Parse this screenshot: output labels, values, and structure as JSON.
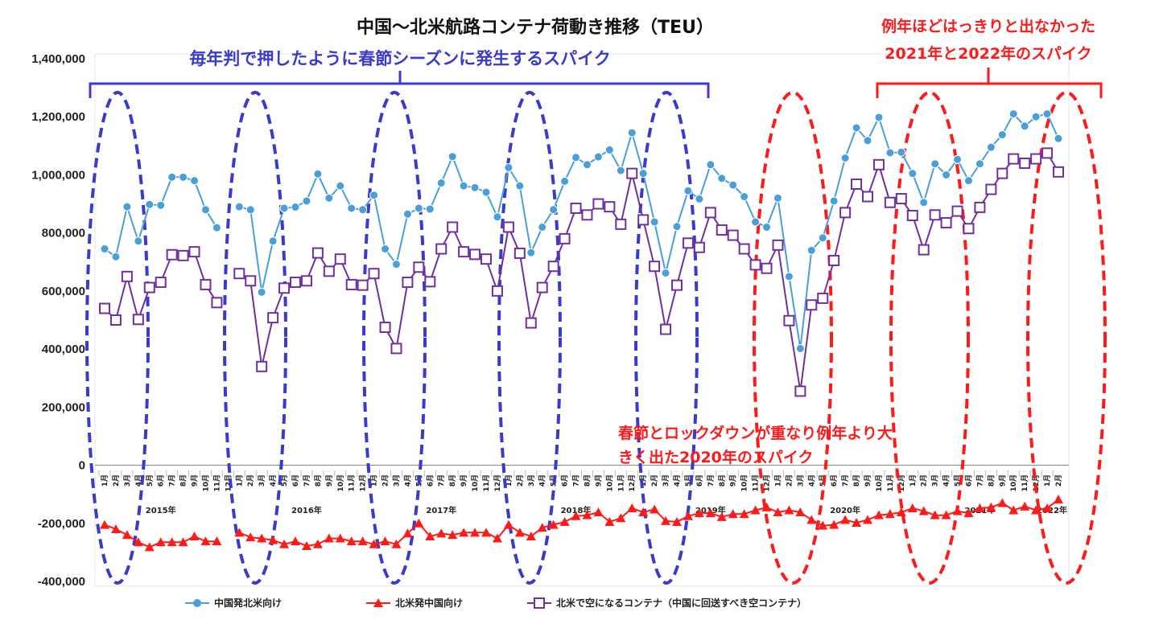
{
  "chart_data": {
    "type": "line",
    "title": "中国～北米航路コンテナ荷動き推移（TEU）",
    "ylim": [
      -400000,
      1400000
    ],
    "y_ticks": [
      "1,400,000",
      "1,200,000",
      "1,000,000",
      "800,000",
      "600,000",
      "400,000",
      "200,000",
      "0",
      "-200,000",
      "-400,000"
    ],
    "x_month_labels": [
      "1月",
      "2月",
      "3月",
      "4月",
      "5月",
      "6月",
      "7月",
      "8月",
      "9月",
      "10月",
      "11月",
      "12月",
      "1月",
      "2月",
      "3月",
      "4月",
      "5月",
      "6月",
      "7月",
      "8月",
      "9月",
      "10月",
      "11月",
      "12月",
      "1月",
      "2月",
      "3月",
      "4月",
      "5月",
      "6月",
      "7月",
      "8月",
      "9月",
      "10月",
      "11月",
      "12月",
      "1月",
      "2月",
      "3月",
      "4月",
      "5月",
      "6月",
      "7月",
      "8月",
      "9月",
      "10月",
      "11月",
      "12月",
      "1月",
      "2月",
      "3月",
      "4月",
      "5月",
      "6月",
      "7月",
      "8月",
      "9月",
      "10月",
      "11月",
      "12月",
      "1月",
      "2月",
      "3月",
      "4月",
      "5月",
      "6月",
      "7月",
      "8月",
      "9月",
      "10月",
      "11月",
      "12月",
      "1月",
      "2月",
      "3月",
      "4月",
      "5月",
      "6月",
      "7月",
      "8月",
      "9月",
      "10月",
      "11月",
      "12月",
      "1月",
      "2月"
    ],
    "x_year_labels": [
      "2015年",
      "2016年",
      "2017年",
      "2018年",
      "2019年",
      "2020年",
      "2021年",
      "2022年"
    ],
    "series": [
      {
        "name": "中国発北米向け",
        "color": "#4a9fd8",
        "marker": "circle",
        "values": [
          745000,
          718000,
          890000,
          772000,
          898000,
          895000,
          992000,
          992000,
          980000,
          880000,
          818000,
          null,
          890000,
          880000,
          596000,
          772000,
          885000,
          889000,
          910000,
          1003000,
          920000,
          962000,
          885000,
          880000,
          930000,
          745000,
          692000,
          865000,
          885000,
          882000,
          972000,
          1063000,
          962000,
          956000,
          940000,
          855000,
          1025000,
          962000,
          732000,
          820000,
          880000,
          978000,
          1060000,
          1035000,
          1062000,
          1086000,
          1015000,
          1145000,
          1005000,
          838000,
          662000,
          822000,
          945000,
          917000,
          1035000,
          988000,
          965000,
          925000,
          838000,
          820000,
          920000,
          650000,
          402000,
          740000,
          783000,
          910000,
          1058000,
          1162000,
          1118000,
          1198000,
          1076000,
          1078000,
          1005000,
          905000,
          1038000,
          1000000,
          1053000,
          980000,
          1038000,
          1095000,
          1138000,
          1210000,
          1168000,
          1200000,
          1210000,
          1125000
        ]
      },
      {
        "name": "北米発中国向け",
        "color": "#ff1a1a",
        "marker": "triangle",
        "values": [
          -205000,
          -220000,
          -240000,
          -265000,
          -282000,
          -265000,
          -265000,
          -265000,
          -245000,
          -262000,
          -262000,
          null,
          -232000,
          -248000,
          -252000,
          -258000,
          -272000,
          -262000,
          -278000,
          -272000,
          -252000,
          -252000,
          -262000,
          -262000,
          -272000,
          -262000,
          -272000,
          -235000,
          -200000,
          -245000,
          -235000,
          -240000,
          -232000,
          -232000,
          -232000,
          -252000,
          -205000,
          -232000,
          -245000,
          -215000,
          -205000,
          -195000,
          -175000,
          -172000,
          -162000,
          -195000,
          -182000,
          -148000,
          -162000,
          -152000,
          -192000,
          -195000,
          -175000,
          -165000,
          -165000,
          -178000,
          -168000,
          -168000,
          -155000,
          -145000,
          -162000,
          -155000,
          -162000,
          -188000,
          -208000,
          -205000,
          -188000,
          -198000,
          -188000,
          -172000,
          -168000,
          -162000,
          -148000,
          -158000,
          -172000,
          -172000,
          -158000,
          -165000,
          -148000,
          -145000,
          -130000,
          -155000,
          -142000,
          -155000,
          -148000,
          -118000
        ]
      },
      {
        "name": "北米で空になるコンテナ（中国に回送すべき空コンテナ）",
        "color": "#7030a0",
        "marker": "square",
        "values": [
          540000,
          500000,
          650000,
          502000,
          612000,
          630000,
          725000,
          722000,
          735000,
          622000,
          560000,
          null,
          660000,
          635000,
          340000,
          508000,
          610000,
          630000,
          635000,
          731000,
          668000,
          710000,
          622000,
          620000,
          660000,
          475000,
          402000,
          630000,
          682000,
          632000,
          745000,
          820000,
          735000,
          726000,
          710000,
          600000,
          820000,
          730000,
          490000,
          612000,
          685000,
          780000,
          885000,
          862000,
          900000,
          890000,
          830000,
          1005000,
          845000,
          685000,
          468000,
          620000,
          765000,
          750000,
          870000,
          810000,
          792000,
          745000,
          690000,
          678000,
          758000,
          498000,
          255000,
          552000,
          575000,
          705000,
          870000,
          968000,
          925000,
          1035000,
          905000,
          918000,
          860000,
          742000,
          862000,
          835000,
          875000,
          815000,
          888000,
          950000,
          1005000,
          1055000,
          1040000,
          1055000,
          1075000,
          1010000
        ]
      }
    ],
    "annotations": {
      "blue_top": "毎年判で押したように春節シーズンに発生するスパイク",
      "red_top_1": "例年ほどはっきりと出なかった",
      "red_top_2": "2021年と2022年のスパイク",
      "red_mid_1": "春節とロックダウンが重なり例年より大",
      "red_mid_2": "きく出た2020年のスパイク"
    }
  }
}
